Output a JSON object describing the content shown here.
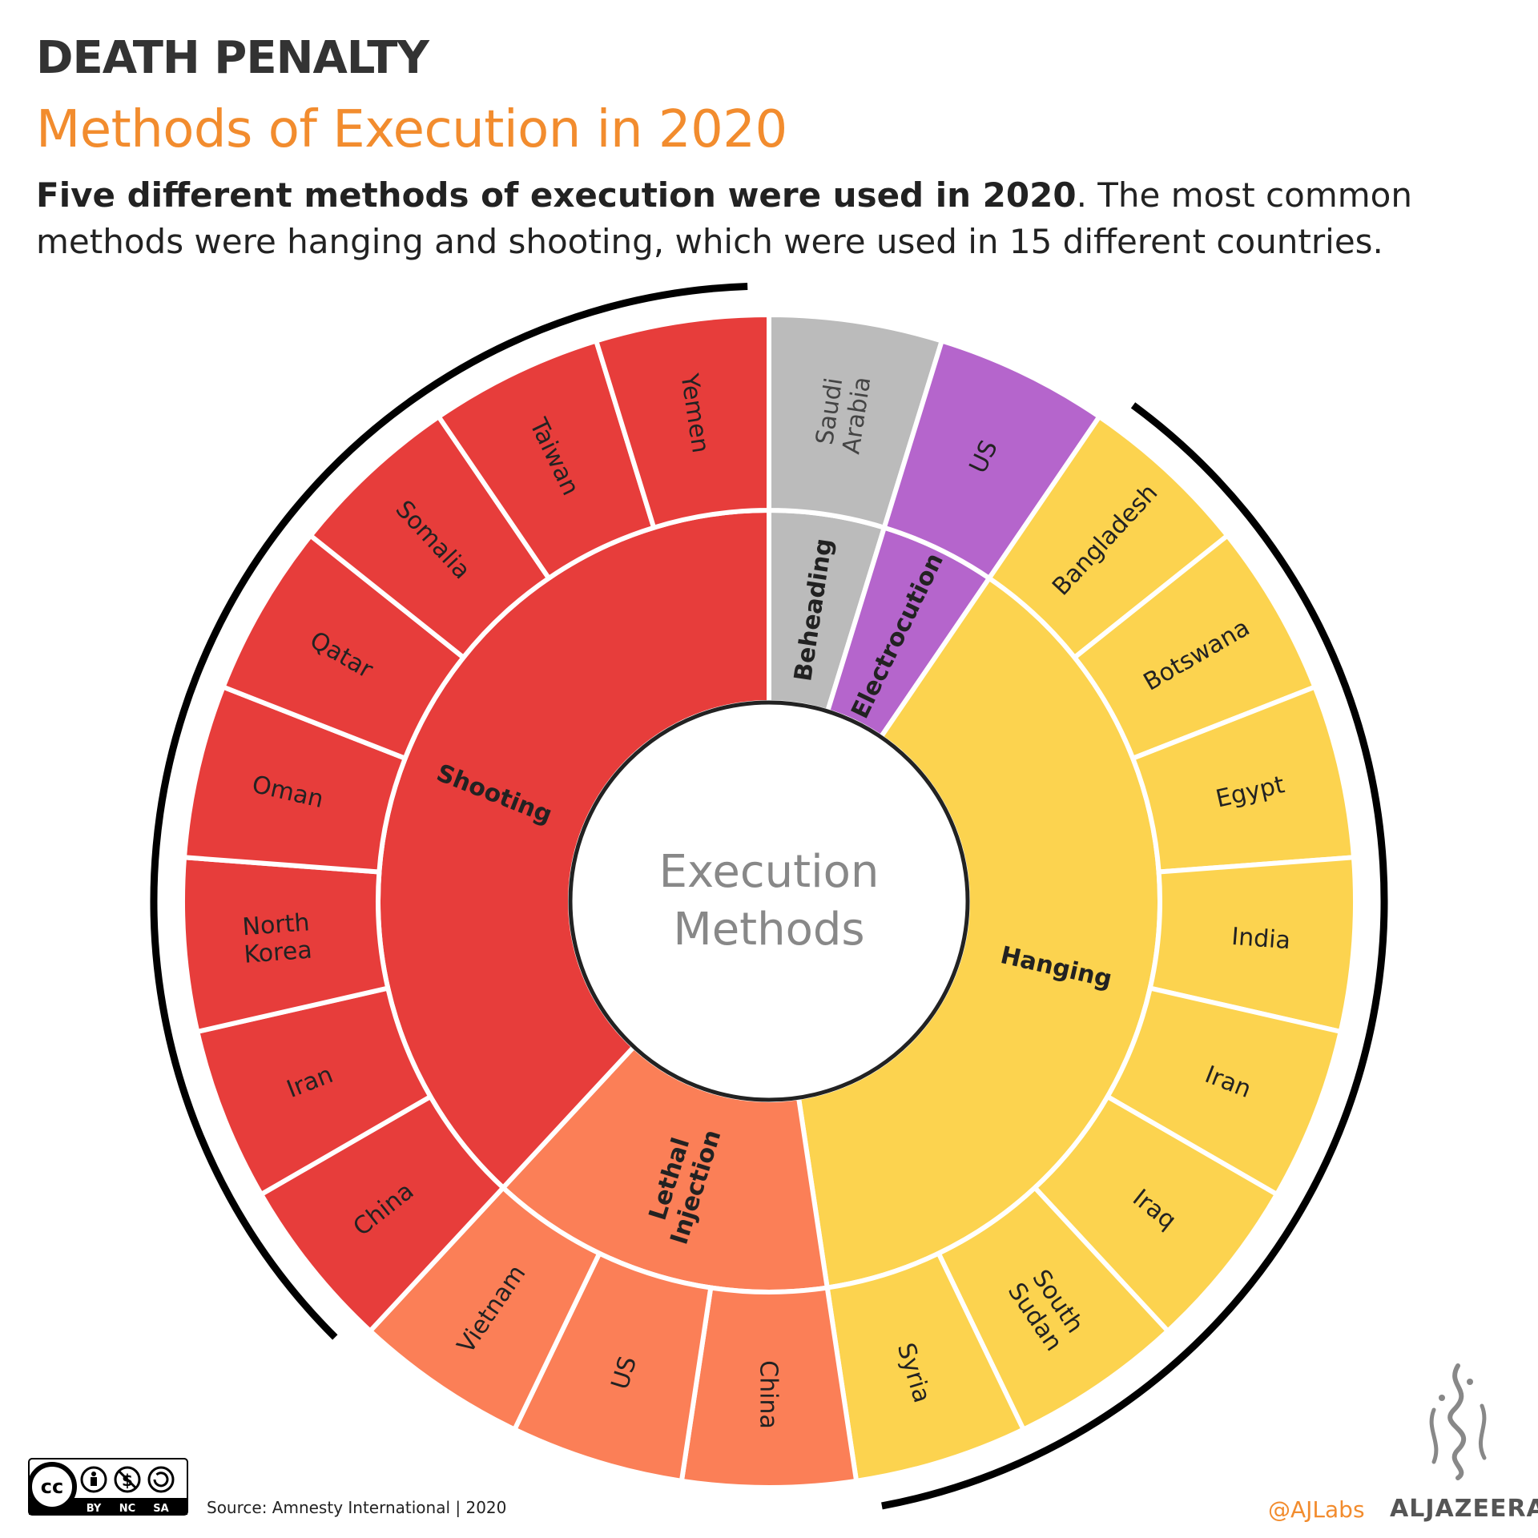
{
  "header": {
    "kicker": "DEATH PENALTY",
    "title": "Methods of Execution in 2020",
    "subtitle_bold": "Five different methods of execution were used in 2020",
    "subtitle_rest": ". The most common methods were hanging and shooting, which were used in 15 different countries."
  },
  "chart_data": {
    "type": "sunburst",
    "center_label": [
      "Execution",
      "Methods"
    ],
    "methods": [
      {
        "name": "Beheading",
        "label_lines": [
          "Beheading"
        ],
        "color": "#bbbbbb",
        "countries": [
          [
            "Saudi",
            "Arabia"
          ]
        ]
      },
      {
        "name": "Electrocution",
        "label_lines": [
          "Electrocution"
        ],
        "color": "#b565cc",
        "countries": [
          [
            "US"
          ]
        ]
      },
      {
        "name": "Hanging",
        "label_lines": [
          "Hanging"
        ],
        "color": "#fcd34f",
        "countries": [
          [
            "Bangladesh"
          ],
          [
            "Botswana"
          ],
          [
            "Egypt"
          ],
          [
            "India"
          ],
          [
            "Iran"
          ],
          [
            "Iraq"
          ],
          [
            "South",
            "Sudan"
          ],
          [
            "Syria"
          ]
        ]
      },
      {
        "name": "Lethal Injection",
        "label_lines": [
          "Lethal",
          "Injection"
        ],
        "color": "#fb7f57",
        "countries": [
          [
            "China"
          ],
          [
            "US"
          ],
          [
            "Vietnam"
          ]
        ]
      },
      {
        "name": "Shooting",
        "label_lines": [
          "Shooting"
        ],
        "color": "#e73d3b",
        "countries": [
          [
            "China"
          ],
          [
            "Iran"
          ],
          [
            "North",
            "Korea"
          ],
          [
            "Oman"
          ],
          [
            "Qatar"
          ],
          [
            "Somalia"
          ],
          [
            "Taiwan"
          ],
          [
            "Yemen"
          ]
        ]
      }
    ]
  },
  "footer": {
    "source": "Source: Amnesty International | 2020",
    "cc_labels": [
      "BY",
      "NC",
      "SA"
    ],
    "handle": "@AJLabs",
    "brand": "ALJAZEERA"
  }
}
